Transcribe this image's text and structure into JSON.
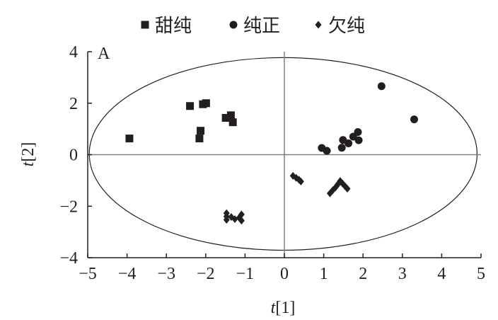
{
  "chart_data": {
    "type": "scatter",
    "panel_label": "A",
    "xlabel": "t[1]",
    "ylabel": "t[2]",
    "xlim": [
      -5,
      5
    ],
    "ylim": [
      -4,
      4
    ],
    "xticks": [
      -5,
      -4,
      -3,
      -2,
      -1,
      0,
      1,
      2,
      3,
      4,
      5
    ],
    "yticks": [
      -4,
      -2,
      0,
      2,
      4
    ],
    "xtick_labels": [
      "−5",
      "−4",
      "−3",
      "−2",
      "−1",
      "0",
      "1",
      "2",
      "3",
      "4",
      "5"
    ],
    "ytick_labels": [
      "−4",
      "−2",
      "0",
      "2",
      "4"
    ],
    "legend_position": "top",
    "grid": false,
    "zero_lines": true,
    "ellipse": {
      "cx": -0.03,
      "cy": 0.03,
      "rx": 4.93,
      "ry": 3.74
    },
    "color": "#231f20",
    "series": [
      {
        "name": "甜纯",
        "marker": "square",
        "points": [
          [
            -3.94,
            0.63
          ],
          [
            -2.4,
            1.89
          ],
          [
            -2.07,
            1.96
          ],
          [
            -1.99,
            2.0
          ],
          [
            -2.13,
            0.93
          ],
          [
            -2.16,
            0.63
          ],
          [
            -1.49,
            1.43
          ],
          [
            -1.36,
            1.53
          ],
          [
            -1.31,
            1.26
          ]
        ]
      },
      {
        "name": "纯正",
        "marker": "circle",
        "points": [
          [
            2.47,
            2.66
          ],
          [
            3.3,
            1.37
          ],
          [
            0.95,
            0.26
          ],
          [
            1.08,
            0.15
          ],
          [
            1.46,
            0.27
          ],
          [
            1.49,
            0.57
          ],
          [
            1.63,
            0.44
          ],
          [
            1.75,
            0.7
          ],
          [
            1.87,
            0.88
          ],
          [
            1.89,
            0.56
          ]
        ]
      },
      {
        "name": "欠纯",
        "marker": "diamond",
        "points": [
          [
            0.22,
            -0.82
          ],
          [
            0.3,
            -0.9
          ],
          [
            0.37,
            -0.97
          ],
          [
            0.42,
            -1.04
          ],
          [
            1.42,
            -1.02
          ],
          [
            1.48,
            -1.12
          ],
          [
            1.54,
            -1.22
          ],
          [
            1.6,
            -1.32
          ],
          [
            1.36,
            -1.15
          ],
          [
            1.3,
            -1.27
          ],
          [
            1.23,
            -1.38
          ],
          [
            1.16,
            -1.5
          ],
          [
            -1.47,
            -2.27
          ],
          [
            -1.47,
            -2.4
          ],
          [
            -1.47,
            -2.53
          ],
          [
            -1.35,
            -2.42
          ],
          [
            -1.26,
            -2.5
          ],
          [
            -1.15,
            -2.45
          ],
          [
            -1.09,
            -2.32
          ],
          [
            -1.09,
            -2.56
          ]
        ]
      }
    ]
  }
}
